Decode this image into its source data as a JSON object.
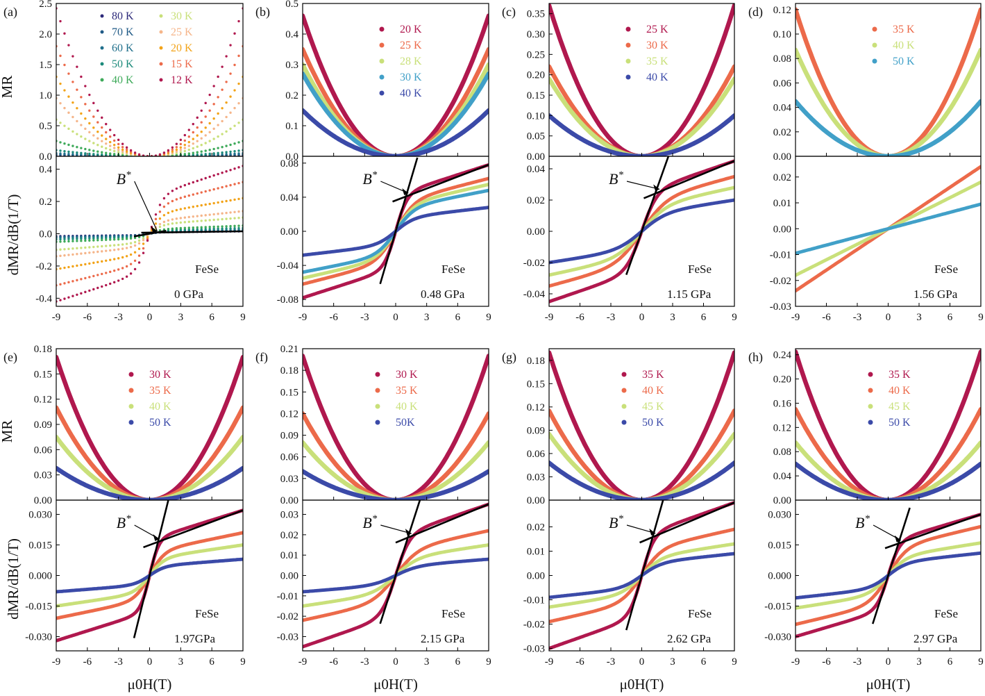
{
  "figure": {
    "xlabel": "μ0H(T)",
    "ylabel_top": "MR",
    "ylabel_bottom": "dMR/dB(1/T)"
  },
  "chart_data": [
    {
      "panel": "(a)",
      "type": "scatter",
      "sample": "FeSe",
      "pressure": "0 GPa",
      "xlim": [
        -9,
        9
      ],
      "xticks": [
        -9,
        -6,
        -3,
        0,
        3,
        6,
        9
      ],
      "mr_ylim": [
        0,
        2.5
      ],
      "mr_yticks": [
        0.0,
        0.5,
        1.0,
        1.5,
        2.0,
        2.5
      ],
      "mr_tick_labels": [
        "0.0",
        "0.5",
        "1.0",
        "1.5",
        "2.0",
        "2.5"
      ],
      "d_ylim": [
        -0.45,
        0.48
      ],
      "d_yticks": [
        -0.4,
        -0.2,
        0.0,
        0.2,
        0.4
      ],
      "d_tick_labels": [
        "-0.4",
        "-0.2",
        "0.0",
        "0.2",
        "0.4"
      ],
      "bstar_label": "B*",
      "bstar_field_T": 1.0,
      "legend_columns": 2,
      "marker": "dot",
      "series": [
        {
          "name": "80 K",
          "color": "#2d2a7a",
          "mr_at_9T": 0.02,
          "dmr_at_9T": 0.015
        },
        {
          "name": "70 K",
          "color": "#1f5a86",
          "mr_at_9T": 0.03,
          "dmr_at_9T": 0.02
        },
        {
          "name": "60 K",
          "color": "#1f6f8b",
          "mr_at_9T": 0.05,
          "dmr_at_9T": 0.025
        },
        {
          "name": "50 K",
          "color": "#1b8a7a",
          "mr_at_9T": 0.1,
          "dmr_at_9T": 0.035
        },
        {
          "name": "40 K",
          "color": "#3eaa5a",
          "mr_at_9T": 0.25,
          "dmr_at_9T": 0.05
        },
        {
          "name": "30 K",
          "color": "#c9e07a",
          "mr_at_9T": 0.6,
          "dmr_at_9T": 0.1
        },
        {
          "name": "25 K",
          "color": "#f5b58a",
          "mr_at_9T": 0.95,
          "dmr_at_9T": 0.14
        },
        {
          "name": "20 K",
          "color": "#f2a318",
          "mr_at_9T": 1.3,
          "dmr_at_9T": 0.22
        },
        {
          "name": "15 K",
          "color": "#ec6a4a",
          "mr_at_9T": 1.8,
          "dmr_at_9T": 0.32
        },
        {
          "name": "12 K",
          "color": "#b0184e",
          "mr_at_9T": 2.42,
          "dmr_at_9T": 0.42
        }
      ]
    },
    {
      "panel": "(b)",
      "type": "scatter",
      "sample": "FeSe",
      "pressure": "0.48 GPa",
      "xlim": [
        -9,
        9
      ],
      "xticks": [
        -9,
        -6,
        -3,
        0,
        3,
        6,
        9
      ],
      "mr_ylim": [
        0,
        0.5
      ],
      "mr_yticks": [
        0.0,
        0.1,
        0.2,
        0.3,
        0.4,
        0.5
      ],
      "mr_tick_labels": [
        "0.0",
        "0.1",
        "0.2",
        "0.3",
        "0.4",
        "0.5"
      ],
      "d_ylim": [
        -0.088,
        0.088
      ],
      "d_yticks": [
        -0.08,
        -0.04,
        0.0,
        0.04,
        0.08
      ],
      "d_tick_labels": [
        "-0.08",
        "-0.04",
        "0.00",
        "0.04",
        "0.08"
      ],
      "bstar_label": "B*",
      "bstar_field_T": 1.5,
      "legend_columns": 1,
      "marker": "dot",
      "series": [
        {
          "name": "20 K",
          "color": "#b0184e",
          "mr_at_9T": 0.46,
          "dmr_at_9T": 0.078
        },
        {
          "name": "25 K",
          "color": "#ec6a4a",
          "mr_at_9T": 0.35,
          "dmr_at_9T": 0.062
        },
        {
          "name": "28 K",
          "color": "#c9e07a",
          "mr_at_9T": 0.3,
          "dmr_at_9T": 0.055
        },
        {
          "name": "30 K",
          "color": "#41a0c8",
          "mr_at_9T": 0.27,
          "dmr_at_9T": 0.048
        },
        {
          "name": "40 K",
          "color": "#3b4aa8",
          "mr_at_9T": 0.15,
          "dmr_at_9T": 0.028
        }
      ]
    },
    {
      "panel": "(c)",
      "type": "scatter",
      "sample": "FeSe",
      "pressure": "1.15 GPa",
      "xlim": [
        -9,
        9
      ],
      "xticks": [
        -9,
        -6,
        -3,
        0,
        3,
        6,
        9
      ],
      "mr_ylim": [
        0,
        0.375
      ],
      "mr_yticks": [
        0.0,
        0.05,
        0.1,
        0.15,
        0.2,
        0.25,
        0.3,
        0.35
      ],
      "mr_tick_labels": [
        "0.00",
        "0.05",
        "0.10",
        "0.15",
        "0.20",
        "0.25",
        "0.30",
        "0.35"
      ],
      "d_ylim": [
        -0.048,
        0.048
      ],
      "d_yticks": [
        -0.04,
        -0.02,
        0.0,
        0.02,
        0.04
      ],
      "d_tick_labels": [
        "-0.04",
        "-0.02",
        "0.00",
        "0.02",
        "0.04"
      ],
      "bstar_label": "B*",
      "bstar_field_T": 2.0,
      "legend_columns": 1,
      "marker": "dot",
      "series": [
        {
          "name": "25 K",
          "color": "#b0184e",
          "mr_at_9T": 0.37,
          "dmr_at_9T": 0.045
        },
        {
          "name": "30 K",
          "color": "#ec6a4a",
          "mr_at_9T": 0.22,
          "dmr_at_9T": 0.035
        },
        {
          "name": "35 K",
          "color": "#c9e07a",
          "mr_at_9T": 0.19,
          "dmr_at_9T": 0.028
        },
        {
          "name": "40 K",
          "color": "#3b4aa8",
          "mr_at_9T": 0.1,
          "dmr_at_9T": 0.02
        }
      ]
    },
    {
      "panel": "(d)",
      "type": "scatter",
      "sample": "FeSe",
      "pressure": "1.56 GPa",
      "xlim": [
        -9,
        9
      ],
      "xticks": [
        -9,
        -6,
        -3,
        0,
        3,
        6,
        9
      ],
      "mr_ylim": [
        0,
        0.125
      ],
      "mr_yticks": [
        0.0,
        0.02,
        0.04,
        0.06,
        0.08,
        0.1,
        0.12
      ],
      "mr_tick_labels": [
        "0.00",
        "0.02",
        "0.04",
        "0.06",
        "0.08",
        "0.10",
        "0.12"
      ],
      "d_ylim": [
        -0.03,
        0.028
      ],
      "d_yticks": [
        -0.03,
        -0.02,
        -0.01,
        0.0,
        0.01,
        0.02
      ],
      "d_tick_labels": [
        "-0.03",
        "-0.02",
        "-0.01",
        "0.00",
        "0.01",
        "0.02"
      ],
      "bstar_label": "",
      "bstar_field_T": null,
      "legend_columns": 1,
      "marker": "dot",
      "series": [
        {
          "name": "35 K",
          "color": "#ec6a4a",
          "mr_at_9T": 0.12,
          "dmr_at_9T": 0.024
        },
        {
          "name": "40 K",
          "color": "#c9e07a",
          "mr_at_9T": 0.087,
          "dmr_at_9T": 0.018
        },
        {
          "name": "50 K",
          "color": "#41a0c8",
          "mr_at_9T": 0.045,
          "dmr_at_9T": 0.0095
        }
      ]
    },
    {
      "panel": "(e)",
      "type": "scatter",
      "sample": "FeSe",
      "pressure": "1.97GPa",
      "xlim": [
        -9,
        9
      ],
      "xticks": [
        -9,
        -6,
        -3,
        0,
        3,
        6,
        9
      ],
      "mr_ylim": [
        0,
        0.18
      ],
      "mr_yticks": [
        0.0,
        0.03,
        0.06,
        0.09,
        0.12,
        0.15,
        0.18
      ],
      "mr_tick_labels": [
        "0.00",
        "0.03",
        "0.06",
        "0.09",
        "0.12",
        "0.15",
        "0.18"
      ],
      "d_ylim": [
        -0.037,
        0.037
      ],
      "d_yticks": [
        -0.03,
        -0.015,
        0.0,
        0.015,
        0.03
      ],
      "d_tick_labels": [
        "-0.030",
        "-0.015",
        "0.000",
        "0.015",
        "0.030"
      ],
      "bstar_label": "B*",
      "bstar_field_T": 1.2,
      "legend_columns": 1,
      "marker": "dot",
      "series": [
        {
          "name": "30 K",
          "color": "#b0184e",
          "mr_at_9T": 0.17,
          "dmr_at_9T": 0.032
        },
        {
          "name": "35 K",
          "color": "#ec6a4a",
          "mr_at_9T": 0.11,
          "dmr_at_9T": 0.021
        },
        {
          "name": "40 K",
          "color": "#c9e07a",
          "mr_at_9T": 0.075,
          "dmr_at_9T": 0.015
        },
        {
          "name": "50 K",
          "color": "#3b4aa8",
          "mr_at_9T": 0.038,
          "dmr_at_9T": 0.008
        }
      ]
    },
    {
      "panel": "(f)",
      "type": "scatter",
      "sample": "FeSe",
      "pressure": "2.15 GPa",
      "xlim": [
        -9,
        9
      ],
      "xticks": [
        -9,
        -6,
        -3,
        0,
        3,
        6,
        9
      ],
      "mr_ylim": [
        0,
        0.21
      ],
      "mr_yticks": [
        0.0,
        0.03,
        0.06,
        0.09,
        0.12,
        0.15,
        0.18,
        0.21
      ],
      "mr_tick_labels": [
        "0.00",
        "0.03",
        "0.06",
        "0.09",
        "0.12",
        "0.15",
        "0.18",
        "0.21"
      ],
      "d_ylim": [
        -0.037,
        0.037
      ],
      "d_yticks": [
        -0.03,
        -0.02,
        -0.01,
        0.0,
        0.01,
        0.02,
        0.03
      ],
      "d_tick_labels": [
        "-0.03",
        "-0.02",
        "-0.01",
        "0.00",
        "0.01",
        "0.02",
        "0.03"
      ],
      "bstar_label": "B*",
      "bstar_field_T": 1.8,
      "legend_columns": 1,
      "marker": "dot",
      "series": [
        {
          "name": "30 K",
          "color": "#b0184e",
          "mr_at_9T": 0.2,
          "dmr_at_9T": 0.035
        },
        {
          "name": "35 K",
          "color": "#ec6a4a",
          "mr_at_9T": 0.12,
          "dmr_at_9T": 0.022
        },
        {
          "name": "40 K",
          "color": "#c9e07a",
          "mr_at_9T": 0.08,
          "dmr_at_9T": 0.015
        },
        {
          "name": "50K",
          "color": "#3b4aa8",
          "mr_at_9T": 0.04,
          "dmr_at_9T": 0.008
        }
      ]
    },
    {
      "panel": "(g)",
      "type": "scatter",
      "sample": "FeSe",
      "pressure": "2.62 GPa",
      "xlim": [
        -9,
        9
      ],
      "xticks": [
        -9,
        -6,
        -3,
        0,
        3,
        6,
        9
      ],
      "mr_ylim": [
        0,
        0.195
      ],
      "mr_yticks": [
        0.0,
        0.03,
        0.06,
        0.09,
        0.12,
        0.15,
        0.18
      ],
      "mr_tick_labels": [
        "0.00",
        "0.03",
        "0.06",
        "0.09",
        "0.12",
        "0.15",
        "0.18"
      ],
      "d_ylim": [
        -0.031,
        0.031
      ],
      "d_yticks": [
        -0.03,
        -0.02,
        -0.01,
        0.0,
        0.01,
        0.02
      ],
      "d_tick_labels": [
        "-0.03",
        "-0.02",
        "-0.01",
        "0.00",
        "0.01",
        "0.02"
      ],
      "bstar_label": "B*",
      "bstar_field_T": 1.6,
      "legend_columns": 1,
      "marker": "dot",
      "series": [
        {
          "name": "35 K",
          "color": "#b0184e",
          "mr_at_9T": 0.19,
          "dmr_at_9T": 0.03
        },
        {
          "name": "40 K",
          "color": "#ec6a4a",
          "mr_at_9T": 0.115,
          "dmr_at_9T": 0.019
        },
        {
          "name": "45 K",
          "color": "#c9e07a",
          "mr_at_9T": 0.085,
          "dmr_at_9T": 0.013
        },
        {
          "name": "50 K",
          "color": "#3b4aa8",
          "mr_at_9T": 0.048,
          "dmr_at_9T": 0.009
        }
      ]
    },
    {
      "panel": "(h)",
      "type": "scatter",
      "sample": "FeSe",
      "pressure": "2.97 GPa",
      "xlim": [
        -9,
        9
      ],
      "xticks": [
        -9,
        -6,
        -3,
        0,
        3,
        6,
        9
      ],
      "mr_ylim": [
        0,
        0.25
      ],
      "mr_yticks": [
        0.0,
        0.04,
        0.08,
        0.12,
        0.16,
        0.2,
        0.24
      ],
      "mr_tick_labels": [
        "0.00",
        "0.04",
        "0.08",
        "0.12",
        "0.16",
        "0.20",
        "0.24"
      ],
      "d_ylim": [
        -0.037,
        0.037
      ],
      "d_yticks": [
        -0.03,
        -0.015,
        0.0,
        0.015,
        0.03
      ],
      "d_tick_labels": [
        "-0.030",
        "-0.015",
        "0.000",
        "0.015",
        "0.030"
      ],
      "bstar_label": "B*",
      "bstar_field_T": 1.5,
      "legend_columns": 1,
      "marker": "dot",
      "series": [
        {
          "name": "35 K",
          "color": "#b0184e",
          "mr_at_9T": 0.245,
          "dmr_at_9T": 0.03
        },
        {
          "name": "40 K",
          "color": "#ec6a4a",
          "mr_at_9T": 0.15,
          "dmr_at_9T": 0.024
        },
        {
          "name": "45 K",
          "color": "#c9e07a",
          "mr_at_9T": 0.095,
          "dmr_at_9T": 0.016
        },
        {
          "name": "50 K",
          "color": "#3b4aa8",
          "mr_at_9T": 0.06,
          "dmr_at_9T": 0.011
        }
      ]
    }
  ]
}
